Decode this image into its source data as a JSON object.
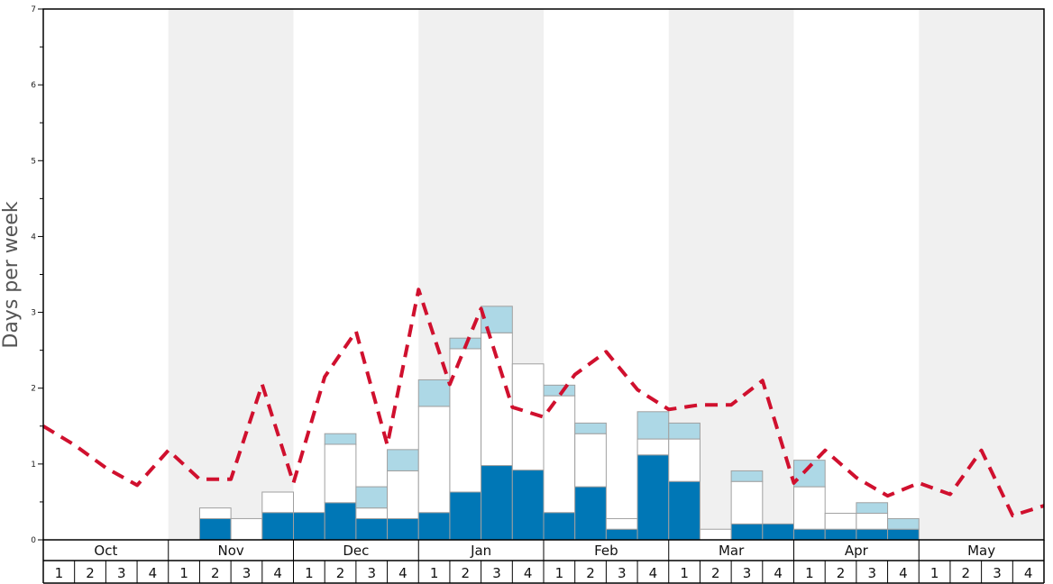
{
  "chart_data": {
    "type": "bar",
    "ylabel": "Days per week",
    "ylim": [
      0,
      7
    ],
    "yticks": [
      "0",
      "1",
      "2",
      "3",
      "4",
      "5",
      "6",
      "7"
    ],
    "months": [
      "Oct",
      "Nov",
      "Dec",
      "Jan",
      "Feb",
      "Mar",
      "Apr",
      "May"
    ],
    "week_labels": [
      "1",
      "2",
      "3",
      "4"
    ],
    "shaded_months": [
      "Nov",
      "Jan",
      "Mar",
      "May"
    ],
    "stacked": true,
    "series": [
      {
        "values": [
          0,
          0,
          0,
          0,
          0,
          0.28,
          0,
          0.36,
          0.36,
          0.49,
          0.28,
          0.28,
          0.36,
          0.63,
          0.98,
          0.92,
          0.36,
          0.7,
          0.14,
          1.12,
          0.77,
          0,
          0.21,
          0.21,
          0.14,
          0.14,
          0.14,
          0.14,
          0,
          0,
          0,
          0
        ]
      },
      {
        "values": [
          0,
          0,
          0,
          0,
          0,
          0.14,
          0.28,
          0.27,
          0,
          0.77,
          0.14,
          0.63,
          1.4,
          1.89,
          1.75,
          1.4,
          1.54,
          0.7,
          0.14,
          0.21,
          0.56,
          0.14,
          0.56,
          0,
          0.56,
          0.21,
          0.21,
          0,
          0,
          0,
          0,
          0
        ]
      },
      {
        "values": [
          0,
          0,
          0,
          0,
          0,
          0,
          0,
          0,
          0,
          0.14,
          0.28,
          0.28,
          0.35,
          0.14,
          0.35,
          0,
          0.14,
          0.14,
          0,
          0.36,
          0.21,
          0,
          0.14,
          0,
          0.35,
          0,
          0.14,
          0.14,
          0,
          0,
          0,
          0
        ]
      }
    ],
    "line": {
      "style": "dashed",
      "values": [
        1.5,
        1.25,
        0.95,
        0.72,
        1.18,
        0.8,
        0.8,
        2.05,
        0.75,
        2.15,
        2.75,
        1.25,
        3.3,
        2.05,
        3.05,
        1.75,
        1.62,
        2.18,
        2.48,
        1.98,
        1.72,
        1.78,
        1.78,
        2.1,
        0.75,
        1.18,
        0.82,
        0.58,
        0.75,
        0.6,
        1.18,
        0.32,
        0.45
      ]
    },
    "colors": {
      "bottom": "#0077b6",
      "middle": "#ffffff",
      "top": "#add8e6",
      "line": "#d0102e",
      "shade": "#f0f0f0"
    }
  }
}
